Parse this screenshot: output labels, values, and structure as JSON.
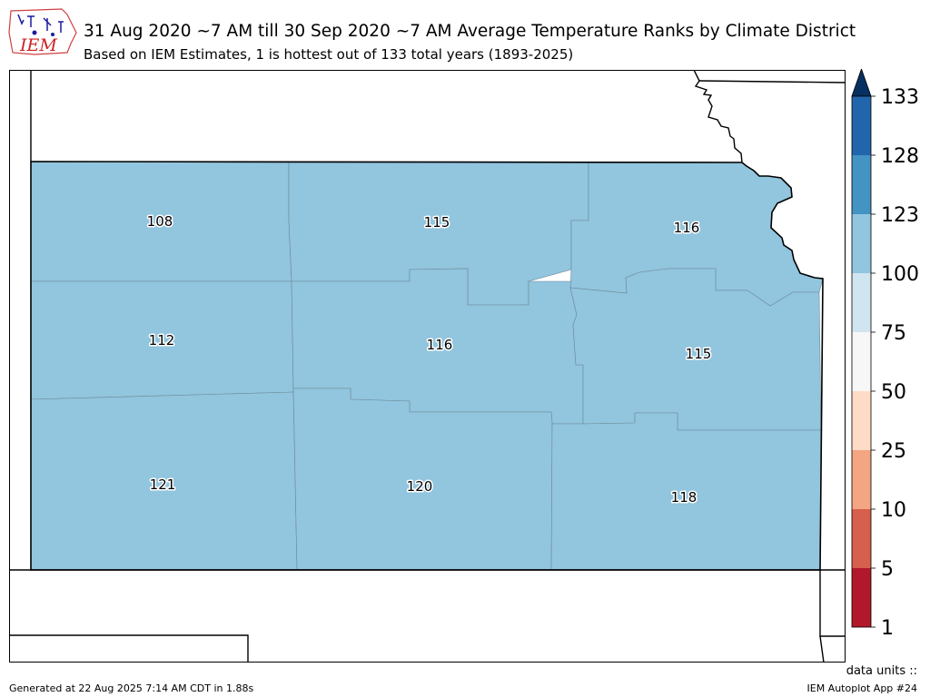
{
  "header": {
    "logo_text": "IEM",
    "title": "31 Aug 2020 ~7 AM till 30 Sep 2020 ~7 AM Average Temperature Ranks by Climate District",
    "subtitle": "Based on IEM Estimates, 1 is hottest out of 133 total years (1893-2025)"
  },
  "map": {
    "district_fill": "#92c5de",
    "district_ranks": [
      {
        "district": "northwest",
        "rank": "108"
      },
      {
        "district": "north-central",
        "rank": "115"
      },
      {
        "district": "northeast",
        "rank": "116"
      },
      {
        "district": "west-central",
        "rank": "112"
      },
      {
        "district": "central",
        "rank": "116"
      },
      {
        "district": "east-central",
        "rank": "115"
      },
      {
        "district": "southwest",
        "rank": "121"
      },
      {
        "district": "south-central",
        "rank": "120"
      },
      {
        "district": "southeast",
        "rank": "118"
      }
    ]
  },
  "colorbar": {
    "levels": [
      "1",
      "5",
      "10",
      "25",
      "50",
      "75",
      "100",
      "123",
      "128",
      "133"
    ],
    "colors": [
      "#b2182b",
      "#d6604d",
      "#f4a582",
      "#fddbc7",
      "#f7f7f7",
      "#d1e5f0",
      "#92c5de",
      "#4393c3",
      "#2166ac"
    ],
    "extend_color": "#053061"
  },
  "footer": {
    "data_units": "data units ::",
    "generated": "Generated at 22 Aug 2025 7:14 AM CDT in 1.88s",
    "app": "IEM Autoplot App #24"
  }
}
